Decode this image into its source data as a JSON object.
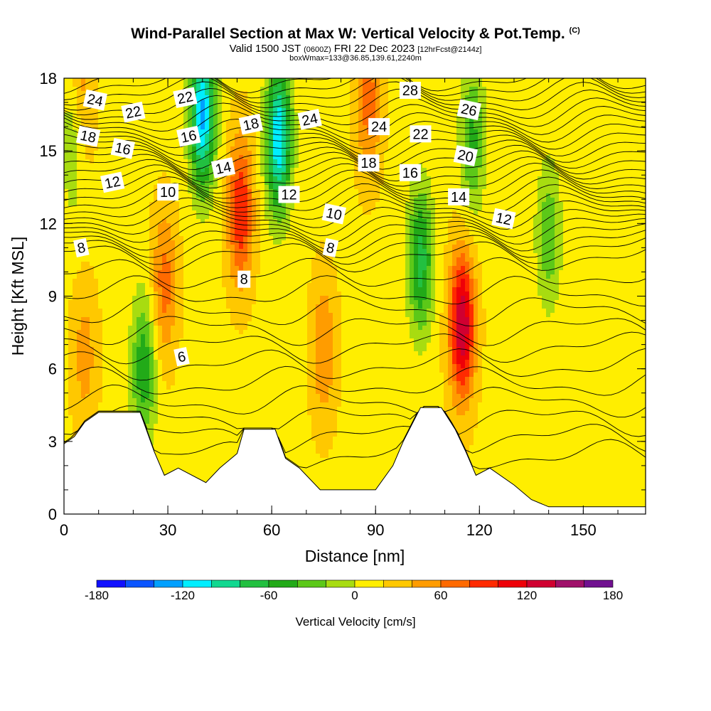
{
  "header": {
    "title": "Wind-Parallel Section at Max W: Vertical Velocity & Pot.Temp.",
    "copyright": "(C)",
    "valid_prefix": "Valid 1500 JST",
    "valid_utc": "(0600Z)",
    "valid_date": "FRI 22 Dec 2023",
    "forecast": "[12hrFcst@2144z]",
    "box_info": "boxWmax=133@36.85,139.61,2240m"
  },
  "colors": {
    "ground": "#ffffff",
    "contour": "#000000",
    "bands": [
      "#1010ff",
      "#0a55ff",
      "#00a0ff",
      "#00eeff",
      "#10d890",
      "#22c040",
      "#22aa18",
      "#5cc818",
      "#a8dc10",
      "#ffee00",
      "#ffc800",
      "#ff9c00",
      "#ff6a00",
      "#ff2a00",
      "#ee0008",
      "#d00030",
      "#a0106a",
      "#701090"
    ]
  },
  "chart_data": {
    "type": "heatmap",
    "title": "Wind-Parallel Section at Max W: Vertical Velocity & Pot.Temp.",
    "xlabel": "Distance [nm]",
    "ylabel": "Height [Kft MSL]",
    "xlim": [
      0,
      168
    ],
    "ylim": [
      0,
      18
    ],
    "x_ticks": [
      "0",
      "30",
      "60",
      "90",
      "120",
      "150"
    ],
    "x_tick_values": [
      0,
      30,
      60,
      90,
      120,
      150
    ],
    "y_ticks": [
      "0",
      "3",
      "6",
      "9",
      "12",
      "15",
      "18"
    ],
    "y_tick_values": [
      0,
      3,
      6,
      9,
      12,
      15,
      18
    ],
    "colorbar": {
      "label": "Vertical Velocity [cm/s]",
      "min": -180,
      "max": 180,
      "step": 20,
      "tick_labels": [
        "-180",
        "-120",
        "-60",
        "0",
        "60",
        "120",
        "180"
      ],
      "tick_values": [
        -180,
        -120,
        -60,
        0,
        60,
        120,
        180
      ]
    },
    "background_w": 15,
    "updrafts": [
      {
        "x": 29,
        "y": 9.5,
        "w": 55
      },
      {
        "x": 51,
        "y": 12.5,
        "w": 85
      },
      {
        "x": 115,
        "y": 7.8,
        "w": 125
      },
      {
        "x": 5,
        "y": 17,
        "w": 45
      },
      {
        "x": 6,
        "y": 6.5,
        "w": 35
      },
      {
        "x": 75,
        "y": 6.8,
        "w": 45
      },
      {
        "x": 88,
        "y": 17,
        "w": 55
      }
    ],
    "downdrafts": [
      {
        "x": 40,
        "y": 16.5,
        "w": -140
      },
      {
        "x": 62,
        "y": 15.5,
        "w": -135
      },
      {
        "x": 23,
        "y": 6.0,
        "w": -70
      },
      {
        "x": 103,
        "y": 10.5,
        "w": -85
      },
      {
        "x": 118,
        "y": 15.5,
        "w": -60
      },
      {
        "x": 3,
        "y": 15.5,
        "w": -45
      },
      {
        "x": 140,
        "y": 11.5,
        "w": -50
      }
    ],
    "terrain": [
      {
        "x": 0,
        "z": 2.9
      },
      {
        "x": 3,
        "z": 3.2
      },
      {
        "x": 6,
        "z": 3.8
      },
      {
        "x": 10,
        "z": 4.2
      },
      {
        "x": 22,
        "z": 4.2
      },
      {
        "x": 26,
        "z": 2.6
      },
      {
        "x": 29,
        "z": 1.6
      },
      {
        "x": 33,
        "z": 1.9
      },
      {
        "x": 41,
        "z": 1.3
      },
      {
        "x": 45,
        "z": 1.9
      },
      {
        "x": 50,
        "z": 2.5
      },
      {
        "x": 52,
        "z": 3.5
      },
      {
        "x": 61,
        "z": 3.5
      },
      {
        "x": 64,
        "z": 2.3
      },
      {
        "x": 68,
        "z": 1.9
      },
      {
        "x": 74,
        "z": 1.0
      },
      {
        "x": 90,
        "z": 1.0
      },
      {
        "x": 95,
        "z": 2.0
      },
      {
        "x": 98,
        "z": 3.0
      },
      {
        "x": 103,
        "z": 4.4
      },
      {
        "x": 109,
        "z": 4.4
      },
      {
        "x": 113,
        "z": 3.5
      },
      {
        "x": 116,
        "z": 2.6
      },
      {
        "x": 119,
        "z": 1.6
      },
      {
        "x": 123,
        "z": 1.9
      },
      {
        "x": 130,
        "z": 1.2
      },
      {
        "x": 135,
        "z": 0.6
      },
      {
        "x": 140,
        "z": 0.3
      },
      {
        "x": 168,
        "z": 0.3
      }
    ],
    "theta_contours": [
      {
        "label": "6",
        "base": 6.3,
        "x": 34,
        "y": 6.5
      },
      {
        "label": "8",
        "base": 8.7,
        "x": 52,
        "y": 9.7
      },
      {
        "label": "8",
        "base": 8.7,
        "x": 77,
        "y": 11.0
      },
      {
        "label": "8",
        "base": 8.7,
        "x": 5,
        "y": 11.0
      },
      {
        "label": "10",
        "base": 10.6,
        "x": 30,
        "y": 13.3
      },
      {
        "label": "10",
        "base": 10.6,
        "x": 78,
        "y": 12.4
      },
      {
        "label": "12",
        "base": 12.0,
        "x": 14,
        "y": 13.7
      },
      {
        "label": "12",
        "base": 12.0,
        "x": 65,
        "y": 13.2
      },
      {
        "label": "12",
        "base": 12.0,
        "x": 127,
        "y": 12.2
      },
      {
        "label": "14",
        "base": 13.0,
        "x": 46,
        "y": 14.3
      },
      {
        "label": "14",
        "base": 13.0,
        "x": 114,
        "y": 13.1
      },
      {
        "label": "16",
        "base": 14.0,
        "x": 17,
        "y": 15.1
      },
      {
        "label": "16",
        "base": 14.0,
        "x": 36,
        "y": 15.6
      },
      {
        "label": "16",
        "base": 14.0,
        "x": 100,
        "y": 14.1
      },
      {
        "label": "18",
        "base": 14.8,
        "x": 7,
        "y": 15.6
      },
      {
        "label": "18",
        "base": 14.8,
        "x": 54,
        "y": 16.1
      },
      {
        "label": "18",
        "base": 14.8,
        "x": 88,
        "y": 14.5
      },
      {
        "label": "20",
        "base": 15.6,
        "x": 116,
        "y": 14.8
      },
      {
        "label": "22",
        "base": 16.2,
        "x": 20,
        "y": 16.6
      },
      {
        "label": "22",
        "base": 16.2,
        "x": 103,
        "y": 15.7
      },
      {
        "label": "24",
        "base": 16.8,
        "x": 9,
        "y": 17.1
      },
      {
        "label": "24",
        "base": 16.8,
        "x": 71,
        "y": 16.3
      },
      {
        "label": "24",
        "base": 16.8,
        "x": 91,
        "y": 16.0
      },
      {
        "label": "26",
        "base": 17.2,
        "x": 117,
        "y": 16.7
      },
      {
        "label": "22",
        "base": 16.2,
        "x": 35,
        "y": 17.2
      },
      {
        "label": "28",
        "base": 17.5,
        "x": 100,
        "y": 17.5
      }
    ]
  }
}
